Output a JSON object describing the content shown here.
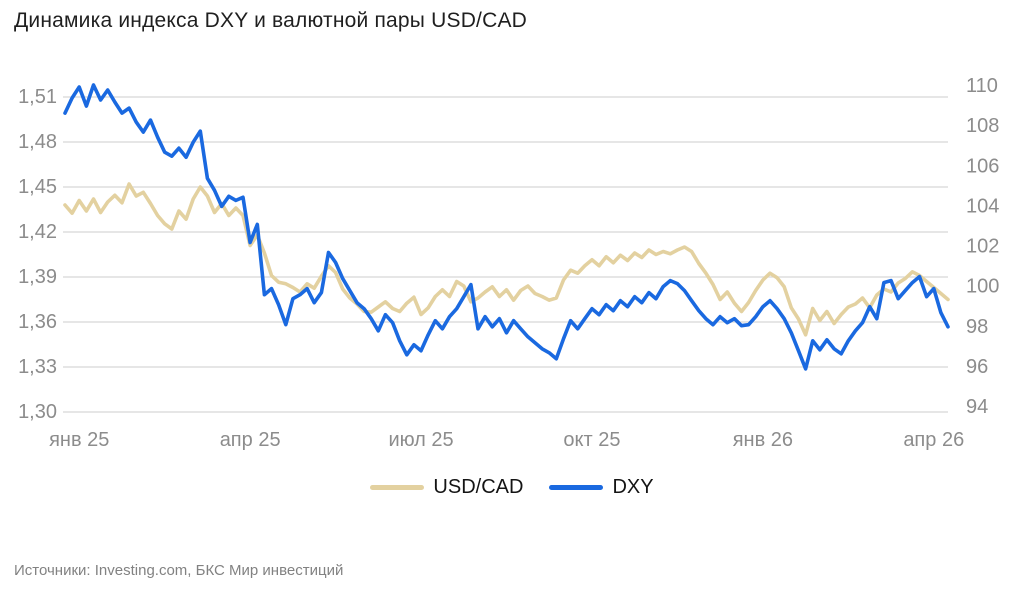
{
  "title": "Динамика индекса DXY и валютной пары USD/CAD",
  "source_note": "Источники: Investing.com, БКС Мир инвестиций",
  "chart_data": {
    "type": "line",
    "title": "Динамика индекса DXY и валютной пары USD/CAD",
    "grid": true,
    "legend_position": "bottom-center",
    "x_axis": {
      "tick_labels": [
        "янв 25",
        "апр 25",
        "июл 25",
        "окт 25",
        "янв 26",
        "апр 26"
      ],
      "span_months": 15.5,
      "points_per_month": 8
    },
    "left_axis": {
      "for_series": "USD/CAD",
      "min": 1.3,
      "max": 1.51,
      "tick_labels": [
        "1,51",
        "1,48",
        "1,45",
        "1,42",
        "1,39",
        "1,36",
        "1,33",
        "1,30"
      ]
    },
    "right_axis": {
      "for_series": "DXY",
      "min": 94,
      "max": 110,
      "tick_labels": [
        "110",
        "108",
        "106",
        "104",
        "102",
        "100",
        "98",
        "96",
        "94"
      ]
    },
    "style": {
      "grid_color": "#d8d8d8",
      "axis_label_color": "#8c8c8c",
      "title_color": "#1f1f1f",
      "usdcad_color": "#e3d1a0",
      "dxy_color": "#1a69e0"
    },
    "series": [
      {
        "name": "USD/CAD",
        "id": "usdcad",
        "axis": "left",
        "color": "#e3d1a0",
        "values": [
          1.438,
          1.4325,
          1.441,
          1.434,
          1.442,
          1.433,
          1.44,
          1.4445,
          1.4395,
          1.452,
          1.444,
          1.4465,
          1.439,
          1.431,
          1.4255,
          1.422,
          1.434,
          1.4285,
          1.442,
          1.45,
          1.444,
          1.433,
          1.439,
          1.431,
          1.436,
          1.431,
          1.411,
          1.418,
          1.406,
          1.391,
          1.3865,
          1.3855,
          1.383,
          1.38,
          1.3855,
          1.3825,
          1.3905,
          1.3975,
          1.393,
          1.382,
          1.376,
          1.372,
          1.367,
          1.3665,
          1.37,
          1.3735,
          1.369,
          1.367,
          1.3725,
          1.3765,
          1.365,
          1.3695,
          1.377,
          1.3815,
          1.377,
          1.387,
          1.384,
          1.3735,
          1.376,
          1.38,
          1.3835,
          1.377,
          1.3815,
          1.3745,
          1.381,
          1.384,
          1.379,
          1.377,
          1.3745,
          1.376,
          1.388,
          1.3945,
          1.3925,
          1.3975,
          1.4015,
          1.3975,
          1.4035,
          1.3995,
          1.4045,
          1.401,
          1.406,
          1.403,
          1.408,
          1.405,
          1.407,
          1.4055,
          1.408,
          1.41,
          1.407,
          1.399,
          1.3925,
          1.385,
          1.375,
          1.38,
          1.3725,
          1.367,
          1.373,
          1.381,
          1.388,
          1.3925,
          1.3895,
          1.3835,
          1.3695,
          1.362,
          1.3515,
          1.369,
          1.361,
          1.367,
          1.359,
          1.365,
          1.37,
          1.372,
          1.376,
          1.3695,
          1.378,
          1.382,
          1.38,
          1.386,
          1.389,
          1.3935,
          1.391,
          1.387,
          1.383,
          1.379,
          1.375
        ]
      },
      {
        "name": "DXY",
        "id": "dxy",
        "axis": "right",
        "color": "#1a69e0",
        "values": [
          108.65,
          109.4,
          109.95,
          109.0,
          110.05,
          109.3,
          109.8,
          109.2,
          108.65,
          108.9,
          108.2,
          107.7,
          108.3,
          107.45,
          106.7,
          106.5,
          106.9,
          106.45,
          107.2,
          107.75,
          105.4,
          104.8,
          104.0,
          104.5,
          104.3,
          104.45,
          102.2,
          103.1,
          99.6,
          99.9,
          99.1,
          98.1,
          99.4,
          99.6,
          99.9,
          99.2,
          99.7,
          101.7,
          101.2,
          100.4,
          99.8,
          99.2,
          98.9,
          98.4,
          97.8,
          98.6,
          98.2,
          97.3,
          96.6,
          97.1,
          96.8,
          97.6,
          98.3,
          97.9,
          98.5,
          98.9,
          99.5,
          100.1,
          97.9,
          98.5,
          98.0,
          98.4,
          97.7,
          98.3,
          97.9,
          97.5,
          97.2,
          96.9,
          96.7,
          96.4,
          97.4,
          98.3,
          97.9,
          98.4,
          98.9,
          98.6,
          99.1,
          98.8,
          99.3,
          99.0,
          99.5,
          99.2,
          99.7,
          99.4,
          100.0,
          100.3,
          100.15,
          99.8,
          99.3,
          98.8,
          98.4,
          98.1,
          98.5,
          98.2,
          98.4,
          98.05,
          98.1,
          98.5,
          99.0,
          99.3,
          98.9,
          98.4,
          97.7,
          96.8,
          95.9,
          97.3,
          96.85,
          97.35,
          96.9,
          96.65,
          97.3,
          97.8,
          98.2,
          99.0,
          98.4,
          100.2,
          100.3,
          99.4,
          99.8,
          100.2,
          100.5,
          99.5,
          99.9,
          98.7,
          98.0
        ]
      }
    ]
  }
}
